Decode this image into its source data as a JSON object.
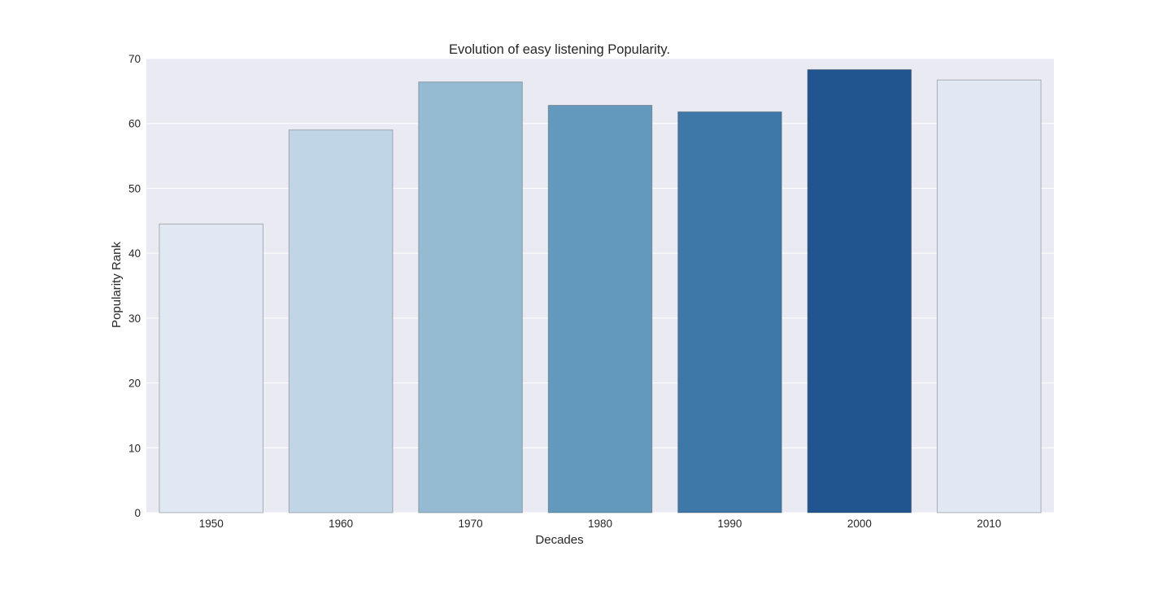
{
  "chart_data": {
    "type": "bar",
    "title": "Evolution of easy listening Popularity.",
    "xlabel": "Decades",
    "ylabel": "Popularity Rank",
    "categories": [
      "1950",
      "1960",
      "1970",
      "1980",
      "1990",
      "2000",
      "2010"
    ],
    "values": [
      44.5,
      59.0,
      66.4,
      62.8,
      61.8,
      68.3,
      66.7
    ],
    "ylim": [
      0,
      70
    ],
    "yticks": [
      0,
      10,
      20,
      30,
      40,
      50,
      60,
      70
    ],
    "grid": true,
    "legend": "none",
    "bar_colors": [
      "#dfe8f3",
      "#c0d5e6",
      "#95bbd3",
      "#6299bd",
      "#3d78a8",
      "#215590",
      "#dfe8f3"
    ],
    "plot_background": "#eaeaf2",
    "grid_color": "#ffffff"
  }
}
